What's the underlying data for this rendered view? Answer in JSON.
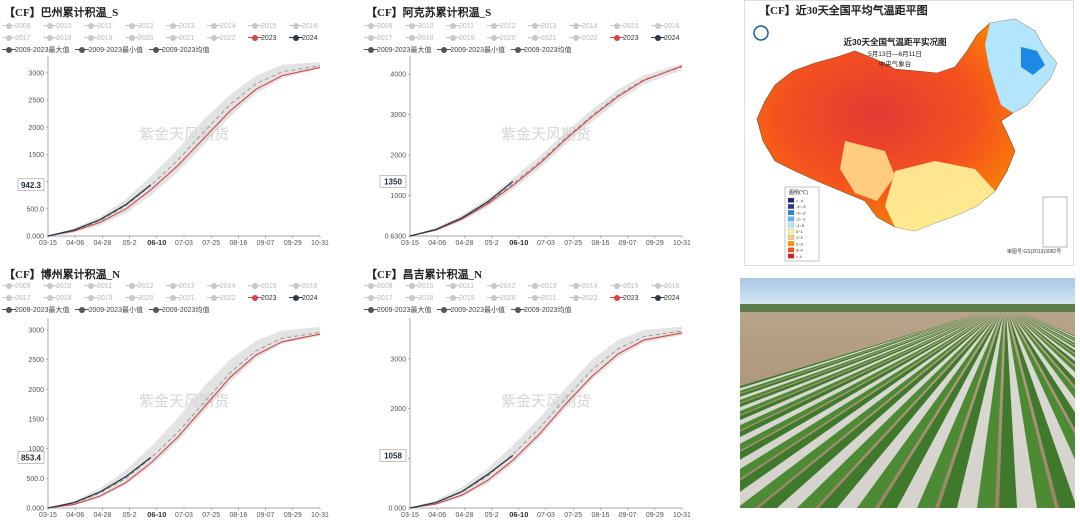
{
  "panels": [
    {
      "title": "【CF】巴州累计积温_S",
      "legend_years_row1": [
        "2009",
        "2010",
        "2011",
        "2012",
        "2013",
        "2014",
        "2015",
        "2016"
      ],
      "legend_years_row2": [
        "2017",
        "2018",
        "2019",
        "2020",
        "2021",
        "2022",
        "2023",
        "2024"
      ],
      "legend_stats": [
        "2009-2023最大值",
        "2009-2023最小值",
        "2009-2023均值"
      ],
      "watermark": "紫金天风期货",
      "current_value_label": "942.3"
    },
    {
      "title": "【CF】阿克苏累计积温_S",
      "legend_years_row1": [
        "2009",
        "2010",
        "2011",
        "2012",
        "2013",
        "2014",
        "2015",
        "2016"
      ],
      "legend_years_row2": [
        "2017",
        "2018",
        "2019",
        "2020",
        "2021",
        "2022",
        "2023",
        "2024"
      ],
      "legend_stats": [
        "2009-2023最大值",
        "2009-2023最小值",
        "2009-2023均值"
      ],
      "watermark": "紫金天风期货",
      "current_value_label": "1350"
    },
    {
      "title": "【CF】博州累计积温_N",
      "legend_years_row1": [
        "2009",
        "2010",
        "2011",
        "2012",
        "2013",
        "2014",
        "2015",
        "2016"
      ],
      "legend_years_row2": [
        "2017",
        "2018",
        "2019",
        "2020",
        "2021",
        "2022",
        "2023",
        "2024"
      ],
      "legend_stats": [
        "2009-2023最大值",
        "2009-2023最小值",
        "2009-2023均值"
      ],
      "watermark": "紫金天风期货",
      "current_value_label": "853.4"
    },
    {
      "title": "【CF】昌吉累计积温_N",
      "legend_years_row1": [
        "2009",
        "2010",
        "2011",
        "2012",
        "2013",
        "2014",
        "2015",
        "2016"
      ],
      "legend_years_row2": [
        "2017",
        "2018",
        "2019",
        "2020",
        "2021",
        "2022",
        "2023",
        "2024"
      ],
      "legend_stats": [
        "2009-2023最大值",
        "2009-2023最小值",
        "2009-2023均值"
      ],
      "watermark": "紫金天风期货",
      "current_value_label": "1058"
    }
  ],
  "chart_data": [
    {
      "type": "line",
      "title": "【CF】巴州累计积温_S",
      "x_ticks": [
        "03-15",
        "04-06",
        "04-28",
        "05-2",
        "06-10",
        "07-03",
        "07-25",
        "08-16",
        "09-07",
        "09-29",
        "10-31"
      ],
      "x_tick_bold": "06-10",
      "y_ticks": [
        "0.000",
        "500.0",
        "1000",
        "1500",
        "2000",
        "2500",
        "3000"
      ],
      "ylim": [
        0,
        3200
      ],
      "x": [
        0,
        22,
        44,
        66,
        87,
        110,
        132,
        154,
        176,
        198,
        230
      ],
      "series": [
        {
          "name": "2023",
          "values": [
            0,
            90,
            250,
            500,
            850,
            1300,
            1800,
            2300,
            2700,
            2950,
            3100
          ]
        },
        {
          "name": "2024",
          "values": [
            0,
            110,
            300,
            580,
            942.3,
            null,
            null,
            null,
            null,
            null,
            null
          ]
        },
        {
          "name": "2009-2023最大值",
          "values": [
            0,
            140,
            360,
            680,
            1100,
            1600,
            2150,
            2600,
            2950,
            3150,
            3200
          ]
        },
        {
          "name": "2009-2023最小值",
          "values": [
            0,
            60,
            200,
            420,
            750,
            1180,
            1680,
            2200,
            2620,
            2900,
            3080
          ]
        },
        {
          "name": "2009-2023均值",
          "values": [
            0,
            100,
            280,
            560,
            930,
            1400,
            1920,
            2420,
            2800,
            3020,
            3130
          ]
        }
      ]
    },
    {
      "type": "line",
      "title": "【CF】阿克苏累计积温_S",
      "x_ticks": [
        "03-15",
        "04-06",
        "04-28",
        "05-2",
        "06-10",
        "07-03",
        "07-25",
        "08-16",
        "09-07",
        "09-29",
        "10-31"
      ],
      "x_tick_bold": "06-10",
      "y_ticks": [
        "0.6300",
        "1000",
        "2000",
        "3000",
        "4000"
      ],
      "ylim": [
        0,
        4300
      ],
      "x": [
        0,
        22,
        44,
        66,
        87,
        110,
        132,
        154,
        176,
        198,
        230
      ],
      "series": [
        {
          "name": "2023",
          "values": [
            0,
            150,
            420,
            800,
            1250,
            1800,
            2400,
            2950,
            3450,
            3850,
            4200
          ]
        },
        {
          "name": "2024",
          "values": [
            0,
            160,
            450,
            850,
            1350,
            null,
            null,
            null,
            null,
            null,
            null
          ]
        },
        {
          "name": "2009-2023最大值",
          "values": [
            0,
            210,
            520,
            930,
            1420,
            1980,
            2580,
            3120,
            3620,
            3980,
            4250
          ]
        },
        {
          "name": "2009-2023最小值",
          "values": [
            0,
            120,
            370,
            720,
            1150,
            1680,
            2270,
            2830,
            3330,
            3750,
            4100
          ]
        },
        {
          "name": "2009-2023均值",
          "values": [
            0,
            160,
            440,
            830,
            1290,
            1840,
            2430,
            2980,
            3480,
            3870,
            4180
          ]
        }
      ]
    },
    {
      "type": "line",
      "title": "【CF】博州累计积温_N",
      "x_ticks": [
        "03-15",
        "04-06",
        "04-28",
        "05-2",
        "06-10",
        "07-03",
        "07-25",
        "08-16",
        "09-07",
        "09-29",
        "10-31"
      ],
      "x_tick_bold": "06-10",
      "y_ticks": [
        "0.000",
        "500.0",
        "1000",
        "1500",
        "2000",
        "2500",
        "3000"
      ],
      "ylim": [
        0,
        3100
      ],
      "x": [
        0,
        22,
        44,
        66,
        87,
        110,
        132,
        154,
        176,
        198,
        230
      ],
      "series": [
        {
          "name": "2023",
          "values": [
            0,
            60,
            200,
            430,
            760,
            1200,
            1700,
            2200,
            2580,
            2800,
            2930
          ]
        },
        {
          "name": "2024",
          "values": [
            0,
            90,
            270,
            530,
            853.4,
            null,
            null,
            null,
            null,
            null,
            null
          ]
        },
        {
          "name": "2009-2023最大值",
          "values": [
            0,
            120,
            330,
            640,
            1030,
            1520,
            2050,
            2500,
            2820,
            2990,
            3050
          ]
        },
        {
          "name": "2009-2023最小值",
          "values": [
            0,
            40,
            170,
            390,
            700,
            1130,
            1620,
            2120,
            2520,
            2770,
            2900
          ]
        },
        {
          "name": "2009-2023均值",
          "values": [
            0,
            80,
            250,
            500,
            840,
            1280,
            1780,
            2280,
            2650,
            2860,
            2960
          ]
        }
      ]
    },
    {
      "type": "line",
      "title": "【CF】昌吉累计积温_N",
      "x_ticks": [
        "03-15",
        "04-06",
        "04-28",
        "05-2",
        "06-10",
        "07-03",
        "07-25",
        "08-16",
        "09-07",
        "09-29",
        "10-31"
      ],
      "x_tick_bold": "06-10",
      "y_ticks": [
        "0.000",
        "1000",
        "2000",
        "3000"
      ],
      "ylim": [
        0,
        3700
      ],
      "x": [
        0,
        22,
        44,
        66,
        87,
        110,
        132,
        154,
        176,
        198,
        230
      ],
      "series": [
        {
          "name": "2023",
          "values": [
            0,
            80,
            260,
            560,
            960,
            1500,
            2100,
            2650,
            3100,
            3380,
            3520
          ]
        },
        {
          "name": "2024",
          "values": [
            0,
            110,
            330,
            680,
            1058,
            null,
            null,
            null,
            null,
            null,
            null
          ]
        },
        {
          "name": "2009-2023最大值",
          "values": [
            0,
            160,
            420,
            800,
            1260,
            1820,
            2420,
            2980,
            3380,
            3580,
            3650
          ]
        },
        {
          "name": "2009-2023最小值",
          "values": [
            0,
            60,
            220,
            500,
            890,
            1420,
            2020,
            2580,
            3030,
            3320,
            3480
          ]
        },
        {
          "name": "2009-2023均值",
          "values": [
            0,
            110,
            320,
            650,
            1080,
            1620,
            2220,
            2780,
            3200,
            3450,
            3560
          ]
        }
      ]
    }
  ],
  "map": {
    "title": "【CF】近30天全国平均气温距平图",
    "inner_title": "近30天全国气温距平实况图",
    "date_range": "5月13日—6月11日",
    "issuer": "中央气象台",
    "legend_title": "图例(℃)",
    "legend_items": [
      "< -4",
      "-4~-3",
      "-3~-2",
      "-2~-1",
      "-1~0",
      "0~1",
      "1~2",
      "2~3",
      "3~4",
      "> 4"
    ],
    "legend_colors": [
      "#1a237e",
      "#283593",
      "#1e88e5",
      "#64b5f6",
      "#b3e5fc",
      "#fff59d",
      "#ffcc80",
      "#ff9800",
      "#f4511e",
      "#c62828"
    ],
    "footer": "审图号:GS(2019)3082号"
  },
  "photo": {
    "subject": "cotton-field-photo"
  },
  "colors": {
    "y2023": "#d04848",
    "y2024": "#2b3a4a",
    "mean": "#999999",
    "band": "#e3e3e3"
  }
}
